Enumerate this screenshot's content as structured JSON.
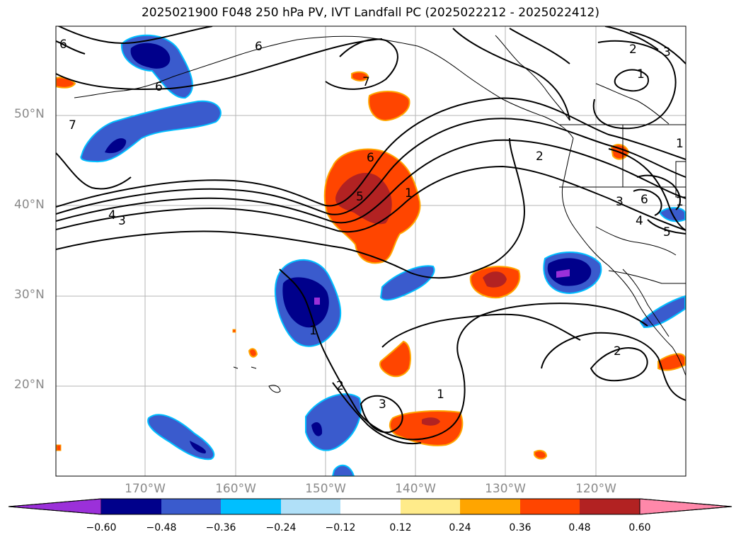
{
  "title": "2025021900 F048 250 hPa PV, IVT Landfall PC (2025022212 - 2025022412)",
  "lat_labels": [
    "50°N",
    "40°N",
    "30°N",
    "20°N"
  ],
  "lon_labels": [
    "170°W",
    "160°W",
    "150°W",
    "140°W",
    "130°W",
    "120°W"
  ],
  "colorbar": {
    "labels": [
      "−0.60",
      "−0.48",
      "−0.36",
      "−0.24",
      "−0.12",
      "0.12",
      "0.24",
      "0.36",
      "0.48",
      "0.60"
    ],
    "colors": [
      "#9b30d9",
      "#00008b",
      "#3a5bcd",
      "#00bfff",
      "#b0e0f8",
      "#ffffff",
      "#ffeb8a",
      "#ffa500",
      "#ff4500",
      "#b22222",
      "#ff88aa"
    ]
  },
  "contour_labels": [
    "6",
    "6",
    "6",
    "7",
    "7",
    "4",
    "3",
    "6",
    "5",
    "1",
    "2",
    "2",
    "3",
    "1",
    "1",
    "3",
    "4",
    "5",
    "6",
    "1",
    "2",
    "3",
    "1",
    "2",
    "1"
  ],
  "colors": {
    "negative_strong": "#00008b",
    "negative_mid": "#3a5bcd",
    "negative_light": "#00bfff",
    "positive_mid": "#ff4500",
    "positive_strong": "#b22222",
    "positive_light": "#ffa500"
  }
}
